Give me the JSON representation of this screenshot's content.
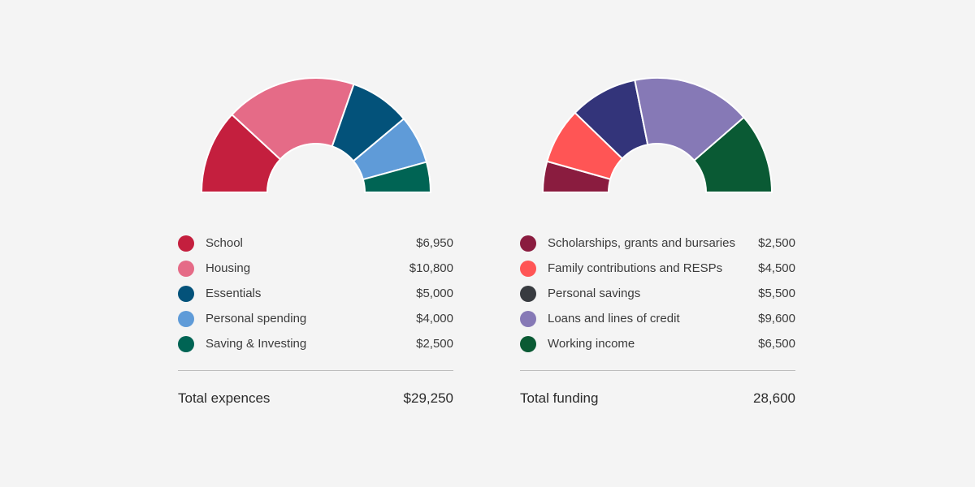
{
  "chart_data": [
    {
      "type": "pie",
      "variant": "half-donut",
      "name": "expenses",
      "categories": [
        "School",
        "Housing",
        "Essentials",
        "Personal spending",
        "Saving & Investing"
      ],
      "values": [
        6950,
        10800,
        5000,
        4000,
        2500
      ],
      "value_labels": [
        "$6,950",
        "$10,800",
        "$5,000",
        "$4,000",
        "$2,500"
      ],
      "colors": [
        "#c41f3e",
        "#e56b87",
        "#03527a",
        "#5f9bd8",
        "#006454"
      ],
      "total_label": "Total expences",
      "total_value": "$29,250"
    },
    {
      "type": "pie",
      "variant": "half-donut",
      "name": "funding",
      "categories": [
        "Scholarships, grants and bursaries",
        "Family contributions and RESPs",
        "Personal savings",
        "Loans and lines of credit",
        "Working income"
      ],
      "values": [
        2500,
        4500,
        5500,
        9600,
        6500
      ],
      "value_labels": [
        "$2,500",
        "$4,500",
        "$5,500",
        "$9,600",
        "$6,500"
      ],
      "colors": [
        "#8a1c3f",
        "#ff5555",
        "#33347a",
        "#8679b6",
        "#0a5a34"
      ],
      "legend_colors": [
        "#8a1c3f",
        "#ff5555",
        "#383b40",
        "#8679b6",
        "#0a5a34"
      ],
      "total_label": "Total funding",
      "total_value": "28,600"
    }
  ]
}
